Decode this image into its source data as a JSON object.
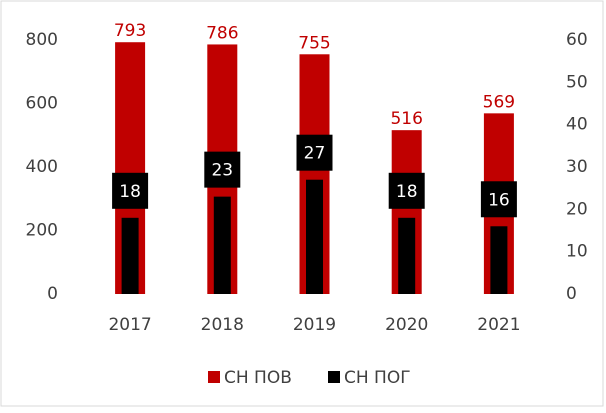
{
  "chart_data": {
    "type": "bar",
    "categories": [
      "2017",
      "2018",
      "2019",
      "2020",
      "2021"
    ],
    "series": [
      {
        "name": "СН ПОВ",
        "color": "#c00000",
        "values": [
          793,
          786,
          755,
          516,
          569
        ]
      },
      {
        "name": "СН ПОГ",
        "color": "#000000",
        "axis": "y2",
        "values": [
          18,
          23,
          27,
          18,
          16
        ]
      }
    ],
    "ylim": [
      0,
      800
    ],
    "yticks": [
      0,
      200,
      400,
      600,
      800
    ],
    "y2lim": [
      0,
      60
    ],
    "y2ticks": [
      0,
      10,
      20,
      30,
      40,
      50,
      60
    ],
    "grid": false,
    "legend": "bottom"
  }
}
